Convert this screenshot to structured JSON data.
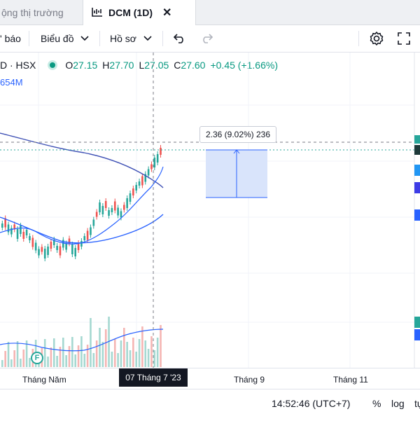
{
  "tabs": {
    "inactive_label": "ộng thị trường",
    "active_label": "DCM (1D)"
  },
  "toolbar": {
    "alert_label": "' báo",
    "chart_label": "Biểu đồ",
    "profile_label": "Hồ sơ"
  },
  "legend": {
    "symbol": "D · HSX",
    "open_label": "O",
    "open": "27.15",
    "high_label": "H",
    "high": "27.70",
    "low_label": "L",
    "low": "27.05",
    "close_label": "C",
    "close": "27.60",
    "change": "+0.45 (+1.66%)",
    "volume": "654M"
  },
  "measure_label": "2.36 (9.02%) 236",
  "time_axis": {
    "labels": [
      "Tháng Năm",
      "Tháng 9",
      "Tháng 11"
    ],
    "current_date": "07 Tháng 7 '23"
  },
  "event_marker": "F",
  "status": {
    "time": "14:52:46 (UTC+7)",
    "percent": "%",
    "log": "log",
    "auto": "tự"
  },
  "colors": {
    "up": "#26a69a",
    "down": "#ef5350",
    "ma_fast": "#2962ff",
    "ma_slow": "#3f51b5",
    "range_fill": "#d9e4fb"
  }
}
